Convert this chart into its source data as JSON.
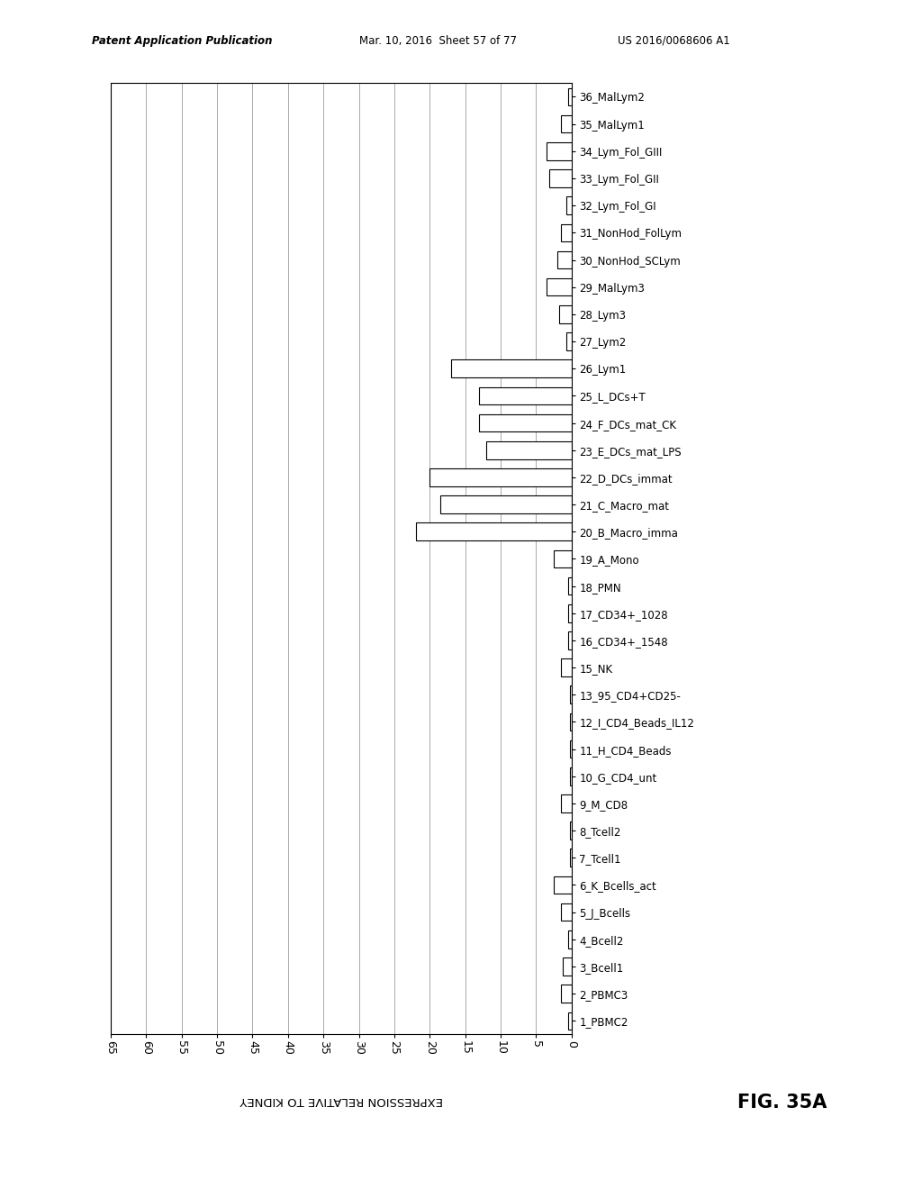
{
  "header_left": "Patent Application Publication",
  "header_mid": "Mar. 10, 2016  Sheet 57 of 77",
  "header_right": "US 2016/0068606 A1",
  "xlabel": "EXPRESSION RELATIVE TO KIDNEY",
  "fig_label": "FIG. 35A",
  "xlim": [
    0,
    65
  ],
  "xticks": [
    0,
    5,
    10,
    15,
    20,
    25,
    30,
    35,
    40,
    45,
    50,
    55,
    60,
    65
  ],
  "categories": [
    "36_MalLym2",
    "35_MalLym1",
    "34_Lym_Fol_GIII",
    "33_Lym_Fol_GII",
    "32_Lym_Fol_GI",
    "31_NonHod_FolLym",
    "30_NonHod_SCLym",
    "29_MalLym3",
    "28_Lym3",
    "27_Lym2",
    "26_Lym1",
    "25_L_DCs+T",
    "24_F_DCs_mat_CK",
    "23_E_DCs_mat_LPS",
    "22_D_DCs_immat",
    "21_C_Macro_mat",
    "20_B_Macro_imma",
    "19_A_Mono",
    "18_PMN",
    "17_CD34+_1028",
    "16_CD34+_1548",
    "15_NK",
    "13_95_CD4+CD25-",
    "12_I_CD4_Beads_IL12",
    "11_H_CD4_Beads",
    "10_G_CD4_unt",
    "9_M_CD8",
    "8_Tcell2",
    "7_Tcell1",
    "6_K_Bcells_act",
    "5_J_Bcells",
    "4_Bcell2",
    "3_Bcell1",
    "2_PBMC3",
    "1_PBMC2"
  ],
  "values": [
    0.5,
    1.5,
    3.5,
    3.2,
    0.8,
    1.5,
    2.0,
    3.5,
    1.8,
    0.8,
    17.0,
    13.0,
    13.0,
    12.0,
    20.0,
    18.5,
    22.0,
    2.5,
    0.5,
    0.5,
    0.5,
    1.5,
    0.3,
    0.3,
    0.3,
    0.3,
    1.5,
    0.3,
    0.3,
    2.5,
    1.5,
    0.5,
    1.2,
    1.5,
    0.5
  ],
  "bar_color": "#ffffff",
  "bar_edgecolor": "#000000",
  "background_color": "#ffffff"
}
